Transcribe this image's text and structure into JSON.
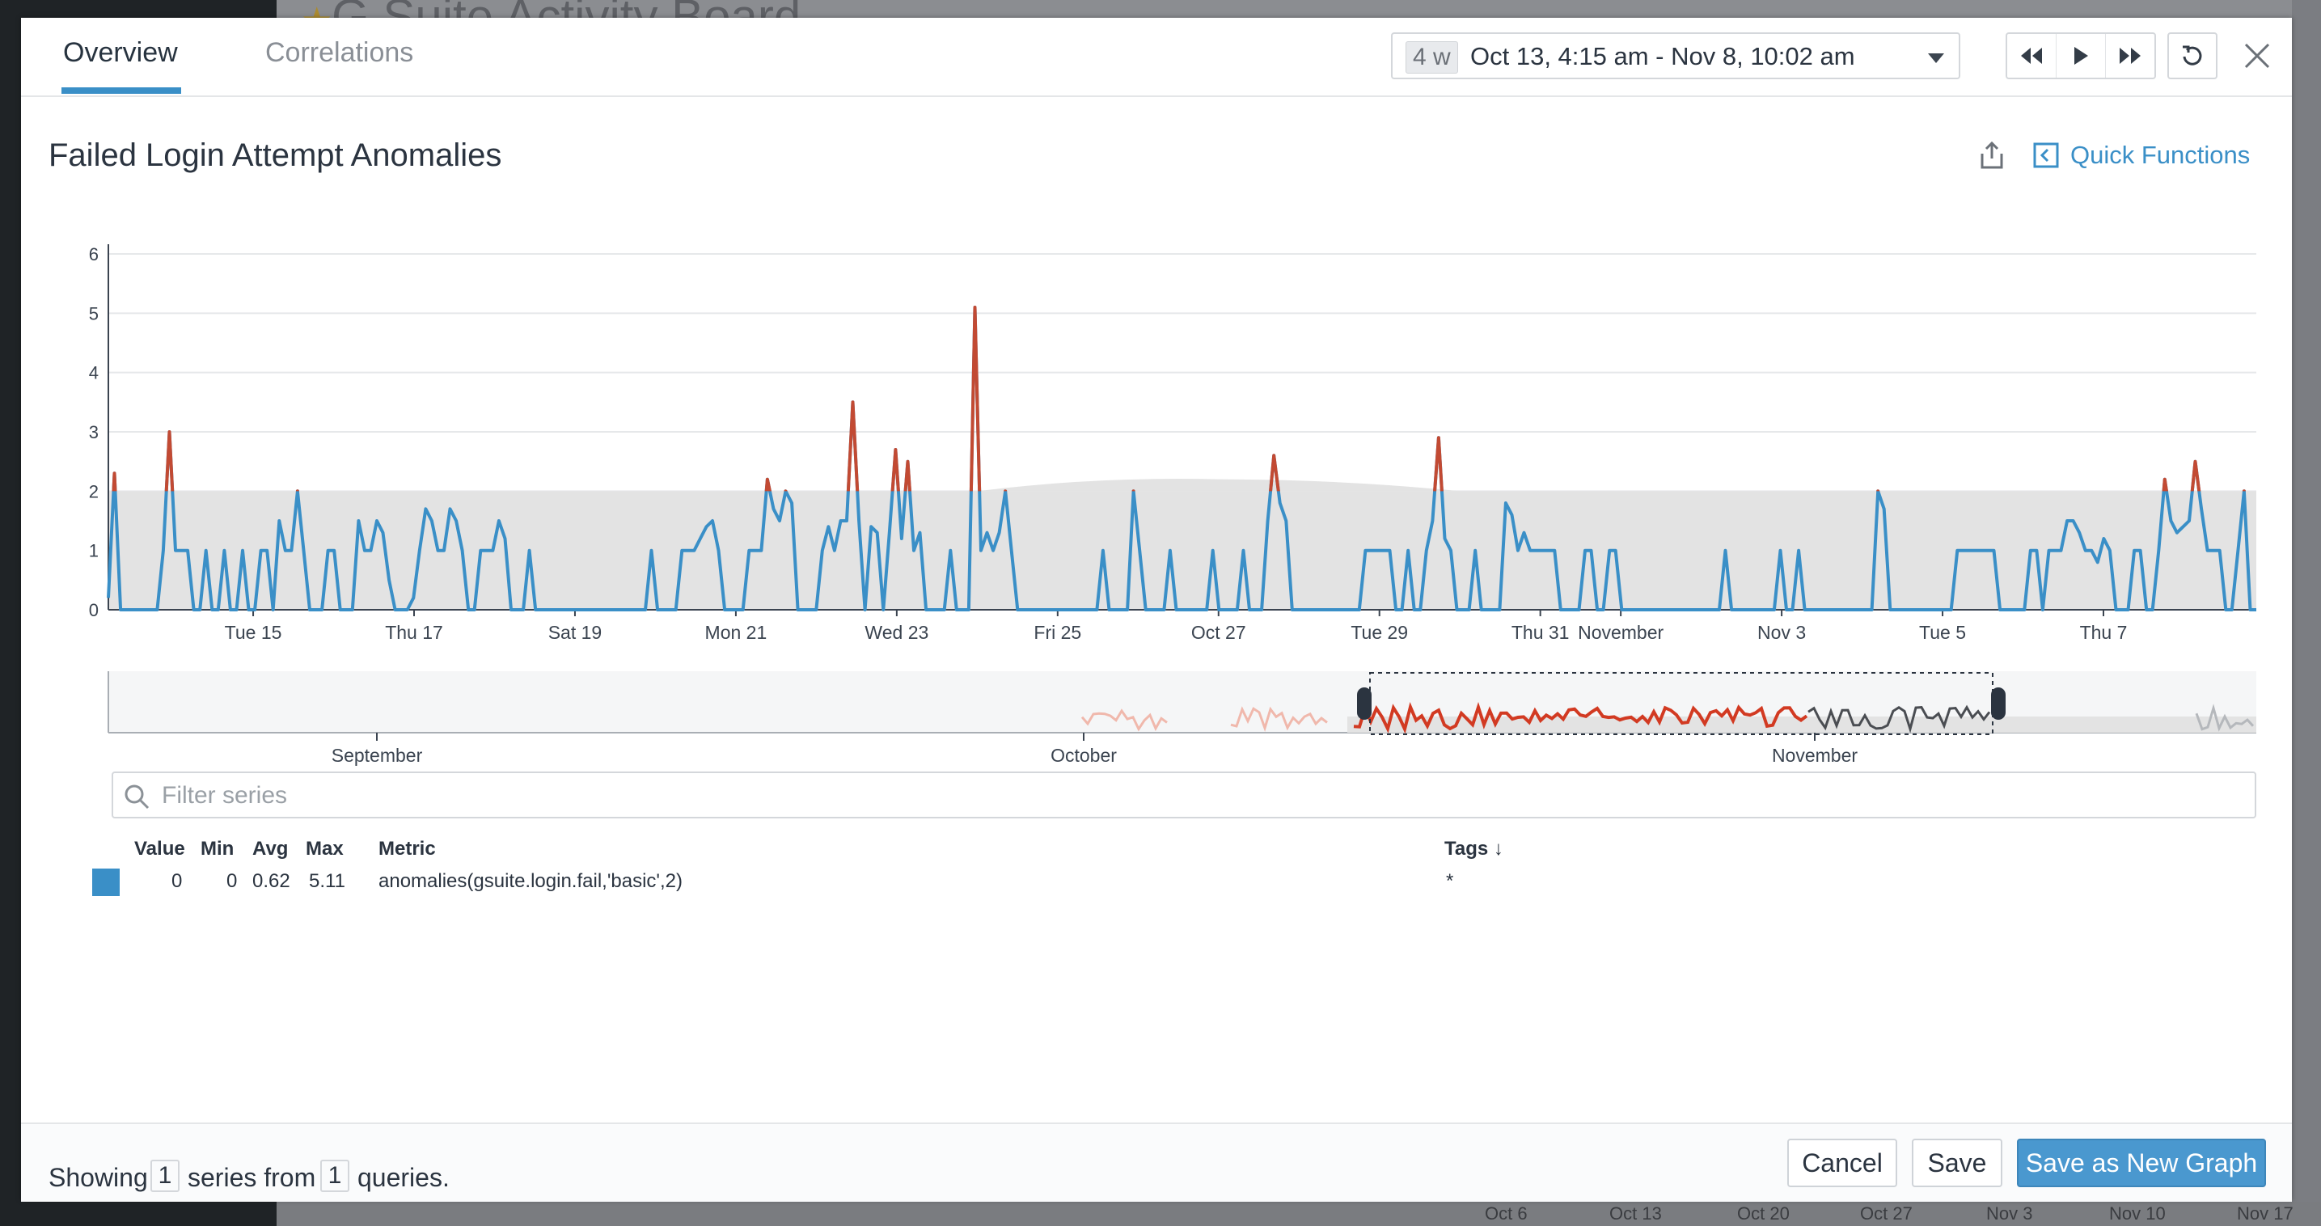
{
  "background": {
    "dashboard_title": "G Suite Activity Board",
    "bottom_axis_labels": [
      "Oct 6",
      "Oct 13",
      "Oct 20",
      "Oct 27",
      "Nov 3",
      "Nov 10",
      "Nov 17"
    ]
  },
  "tabs": [
    {
      "label": "Overview",
      "active": true
    },
    {
      "label": "Correlations",
      "active": false
    }
  ],
  "timeframe": {
    "badge": "4 w",
    "range": "Oct 13, 4:15 am - Nov 8, 10:02 am"
  },
  "controls": {
    "icons": [
      "rewind-icon",
      "play-icon",
      "fast-forward-icon",
      "reset-icon",
      "close-icon"
    ]
  },
  "graph": {
    "title": "Failed Login Attempt Anomalies",
    "quick_functions_label": "Quick Functions"
  },
  "chart_data": {
    "type": "line",
    "ylim": [
      0,
      6
    ],
    "y_ticks": [
      0,
      1,
      2,
      3,
      4,
      5,
      6
    ],
    "x_tick_labels": [
      "Tue 15",
      "Thu 17",
      "Sat 19",
      "Mon 21",
      "Wed 23",
      "Fri 25",
      "Oct 27",
      "Tue 29",
      "Thu 31",
      "November",
      "Nov 3",
      "Tue 5",
      "Thu 7"
    ],
    "x_tick_days": [
      2,
      4,
      6,
      8,
      10,
      12,
      14,
      16,
      18,
      19,
      21,
      23,
      25
    ],
    "x_range_days": [
      0.2,
      26.9
    ],
    "band": {
      "lower": 0,
      "upper": 2
    },
    "series_color": "#3a8fc7",
    "anomaly_color": "#c24a33",
    "values": [
      0.2,
      2.3,
      0,
      0,
      0,
      0,
      0,
      0,
      0,
      1,
      3,
      1,
      1,
      1,
      0,
      0,
      1,
      0,
      0,
      1,
      0,
      0,
      1,
      0,
      0,
      1,
      1,
      0,
      1.5,
      1,
      1,
      2,
      1,
      0,
      0,
      0,
      1,
      1,
      0,
      0,
      0,
      1.5,
      1,
      1,
      1.5,
      1.3,
      0.5,
      0,
      0,
      0,
      0.2,
      1,
      1.7,
      1.5,
      1,
      1,
      1.7,
      1.5,
      1,
      0,
      0,
      1,
      1,
      1,
      1.5,
      1.2,
      0,
      0,
      0,
      1,
      0,
      0,
      0,
      0,
      0,
      0,
      0,
      0,
      0,
      0,
      0,
      0,
      0,
      0,
      0,
      0,
      0,
      0,
      0,
      1,
      0,
      0,
      0,
      0,
      1,
      1,
      1,
      1.2,
      1.4,
      1.5,
      1,
      0,
      0,
      0,
      0,
      1,
      1,
      1,
      2.2,
      1.7,
      1.5,
      2,
      1.8,
      0,
      0,
      0,
      0,
      1,
      1.4,
      1,
      1.5,
      1.5,
      3.5,
      1.5,
      0,
      1.4,
      1.3,
      0,
      1.3,
      2.7,
      1.2,
      2.5,
      1,
      1.3,
      0,
      0,
      0,
      0,
      1,
      0,
      0,
      0,
      5.1,
      1,
      1.3,
      1,
      1.3,
      2,
      1,
      0,
      0,
      0,
      0,
      0,
      0,
      0,
      0,
      0,
      0,
      0,
      0,
      0,
      0,
      1,
      0,
      0,
      0,
      0,
      2,
      1,
      0,
      0,
      0,
      0,
      1,
      0,
      0,
      0,
      0,
      0,
      0,
      1,
      0,
      0,
      0,
      0,
      1,
      0,
      0,
      0,
      1.5,
      2.6,
      1.8,
      1.5,
      0,
      0,
      0,
      0,
      0,
      0,
      0,
      0,
      0,
      0,
      0,
      0,
      1,
      1,
      1,
      1,
      1,
      0,
      0,
      1,
      0,
      0,
      1,
      1.5,
      2.9,
      1.2,
      1,
      0,
      0,
      0,
      1,
      0,
      0,
      0,
      0,
      1.8,
      1.6,
      1,
      1.3,
      1,
      1,
      1,
      1,
      1,
      0,
      0,
      0,
      0,
      1,
      1,
      0,
      0,
      1,
      1,
      0,
      0,
      0,
      0,
      0,
      0,
      0,
      0,
      0,
      0,
      0,
      0,
      0,
      0,
      0,
      0,
      0,
      1,
      0,
      0,
      0,
      0,
      0,
      0,
      0,
      0,
      1,
      0,
      0,
      1,
      0,
      0,
      0,
      0,
      0,
      0,
      0,
      0,
      0,
      0,
      0,
      0,
      2,
      1.7,
      0,
      0,
      0,
      0,
      0,
      0,
      0,
      0,
      0,
      0,
      0,
      1,
      1,
      1,
      1,
      1,
      1,
      1,
      0,
      0,
      0,
      0,
      0,
      1,
      1,
      0,
      1,
      1,
      1,
      1.5,
      1.5,
      1.3,
      1,
      1,
      0.8,
      1.2,
      1,
      0,
      0,
      0,
      1,
      1,
      0,
      0,
      1,
      2.2,
      1.5,
      1.3,
      1.4,
      1.5,
      2.5,
      1.7,
      1,
      1,
      1,
      0,
      0,
      1,
      2,
      0,
      0
    ]
  },
  "navigator": {
    "month_labels": [
      "September",
      "October",
      "November"
    ]
  },
  "filter": {
    "placeholder": "Filter series",
    "value": ""
  },
  "legend": {
    "headers": {
      "value": "Value",
      "min": "Min",
      "avg": "Avg",
      "max": "Max",
      "metric": "Metric",
      "tags": "Tags ↓"
    },
    "rows": [
      {
        "value": "0",
        "min": "0",
        "avg": "0.62",
        "max": "5.11",
        "metric": "anomalies(gsuite.login.fail,'basic',2)",
        "tags": "*",
        "color": "#3a8fc7"
      }
    ]
  },
  "footer": {
    "showing": "Showing",
    "series_count": "1",
    "series_from": "series from",
    "query_count": "1",
    "queries": "queries.",
    "cancel": "Cancel",
    "save": "Save",
    "save_new": "Save as New Graph"
  }
}
